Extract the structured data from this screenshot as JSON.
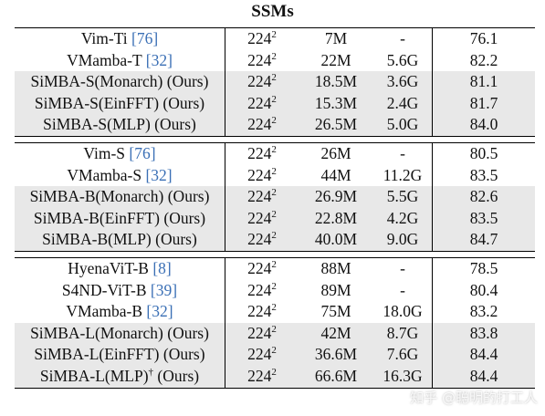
{
  "title": "SSMs",
  "groups": [
    {
      "rows": [
        {
          "name": "Vim-Ti",
          "cite": "76",
          "ours": "",
          "res": "224",
          "exp": "2",
          "params": "7M",
          "flops": "-",
          "acc": "76.1",
          "hl": false
        },
        {
          "name": "VMamba-T",
          "cite": "32",
          "ours": "",
          "res": "224",
          "exp": "2",
          "params": "22M",
          "flops": "5.6G",
          "acc": "82.2",
          "hl": false
        },
        {
          "name": "SiMBA-S(Monarch)",
          "cite": "",
          "ours": "(Ours)",
          "res": "224",
          "exp": "2",
          "params": "18.5M",
          "flops": "3.6G",
          "acc": "81.1",
          "hl": true
        },
        {
          "name": "SiMBA-S(EinFFT)",
          "cite": "",
          "ours": "(Ours)",
          "res": "224",
          "exp": "2",
          "params": "15.3M",
          "flops": "2.4G",
          "acc": "81.7",
          "hl": true
        },
        {
          "name": "SiMBA-S(MLP)",
          "cite": "",
          "ours": "(Ours)",
          "res": "224",
          "exp": "2",
          "params": "26.5M",
          "flops": "5.0G",
          "acc": "84.0",
          "hl": true
        }
      ]
    },
    {
      "rows": [
        {
          "name": "Vim-S",
          "cite": "76",
          "ours": "",
          "res": "224",
          "exp": "2",
          "params": "26M",
          "flops": "-",
          "acc": "80.5",
          "hl": false
        },
        {
          "name": "VMamba-S",
          "cite": "32",
          "ours": "",
          "res": "224",
          "exp": "2",
          "params": "44M",
          "flops": "11.2G",
          "acc": "83.5",
          "hl": false
        },
        {
          "name": "SiMBA-B(Monarch)",
          "cite": "",
          "ours": "(Ours)",
          "res": "224",
          "exp": "2",
          "params": "26.9M",
          "flops": "5.5G",
          "acc": "82.6",
          "hl": true
        },
        {
          "name": "SiMBA-B(EinFFT)",
          "cite": "",
          "ours": "(Ours)",
          "res": "224",
          "exp": "2",
          "params": "22.8M",
          "flops": "4.2G",
          "acc": "83.5",
          "hl": true
        },
        {
          "name": "SiMBA-B(MLP)",
          "cite": "",
          "ours": "(Ours)",
          "res": "224",
          "exp": "2",
          "params": "40.0M",
          "flops": "9.0G",
          "acc": "84.7",
          "hl": true
        }
      ]
    },
    {
      "rows": [
        {
          "name": "HyenaViT-B",
          "cite": "8",
          "ours": "",
          "res": "224",
          "exp": "2",
          "params": "88M",
          "flops": "-",
          "acc": "78.5",
          "hl": false
        },
        {
          "name": "S4ND-ViT-B",
          "cite": "39",
          "ours": "",
          "res": "224",
          "exp": "2",
          "params": "89M",
          "flops": "-",
          "acc": "80.4",
          "hl": false
        },
        {
          "name": "VMamba-B",
          "cite": "32",
          "ours": "",
          "res": "224",
          "exp": "2",
          "params": "75M",
          "flops": "18.0G",
          "acc": "83.2",
          "hl": false
        },
        {
          "name": "SiMBA-L(Monarch)",
          "cite": "",
          "ours": "(Ours)",
          "res": "224",
          "exp": "2",
          "params": "42M",
          "flops": "8.7G",
          "acc": "83.8",
          "hl": true
        },
        {
          "name": "SiMBA-L(EinFFT)",
          "cite": "",
          "ours": "(Ours)",
          "res": "224",
          "exp": "2",
          "params": "36.6M",
          "flops": "7.6G",
          "acc": "84.4",
          "hl": true
        },
        {
          "name": "SiMBA-L(MLP)",
          "dagger": "†",
          "cite": "",
          "ours": "(Ours)",
          "res": "224",
          "exp": "2",
          "params": "66.6M",
          "flops": "16.3G",
          "acc": "84.4",
          "hl": true
        }
      ]
    }
  ],
  "watermark": "知乎 @聪明的打工人"
}
